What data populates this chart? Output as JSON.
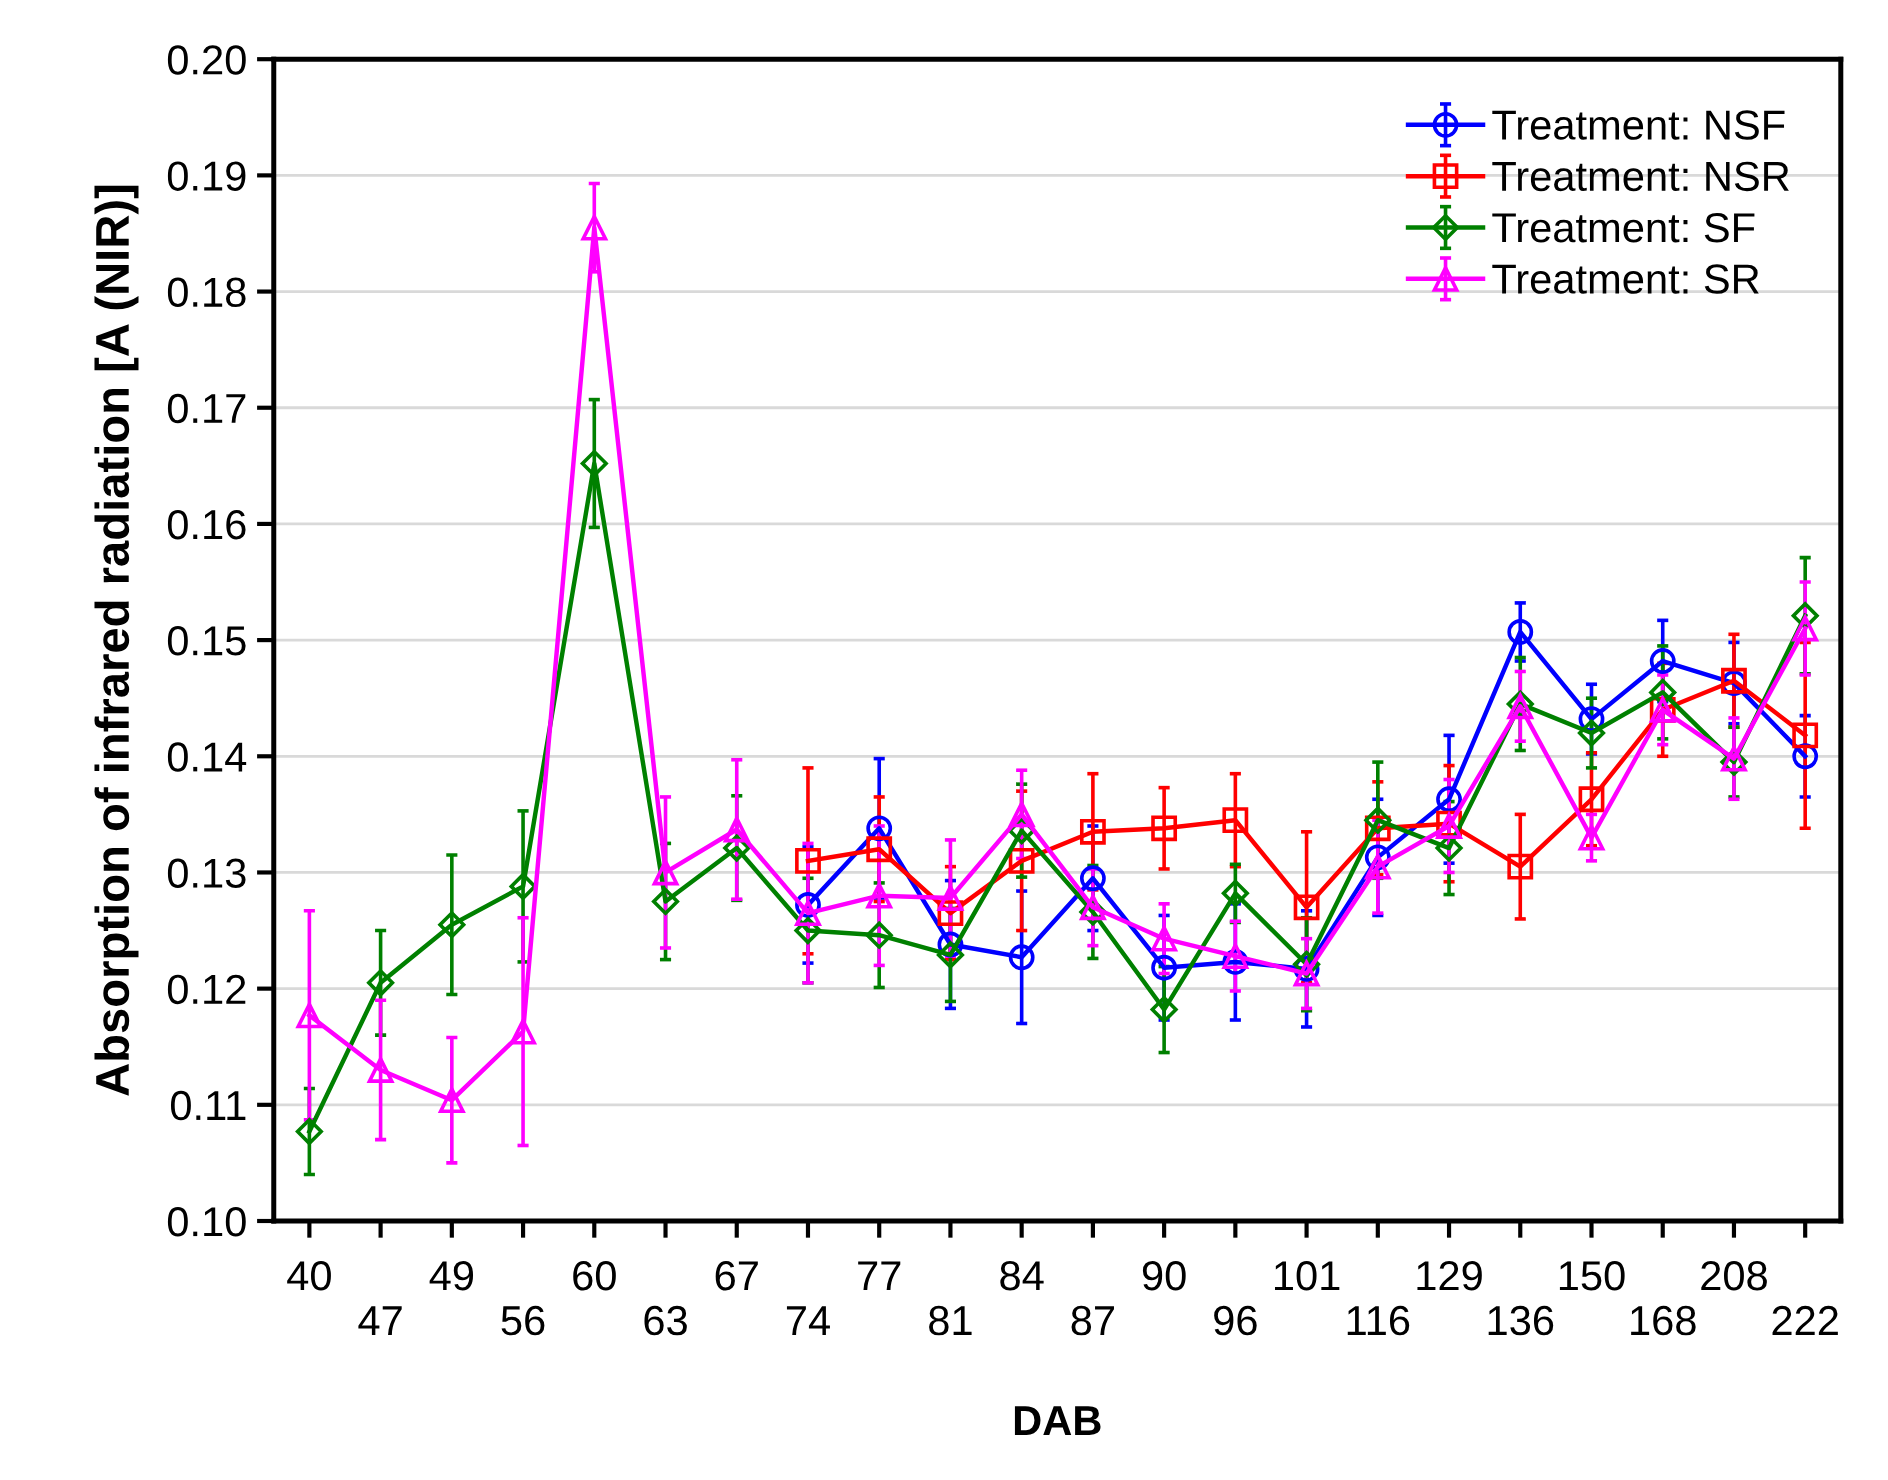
{
  "chart_data": {
    "type": "line",
    "xlabel": "DAB",
    "ylabel": "Absorption of infrared radiation [A (NIR)]",
    "categories": [
      "40",
      "47",
      "49",
      "56",
      "60",
      "63",
      "67",
      "74",
      "77",
      "81",
      "84",
      "87",
      "90",
      "96",
      "101",
      "116",
      "129",
      "136",
      "150",
      "168",
      "208",
      "222"
    ],
    "ylim": [
      0.1,
      0.2
    ],
    "yticks": [
      {
        "value": 0.1,
        "label": "0.10"
      },
      {
        "value": 0.11,
        "label": "0.11"
      },
      {
        "value": 0.12,
        "label": "0.12"
      },
      {
        "value": 0.13,
        "label": "0.13"
      },
      {
        "value": 0.14,
        "label": "0.14"
      },
      {
        "value": 0.15,
        "label": "0.15"
      },
      {
        "value": 0.16,
        "label": "0.16"
      },
      {
        "value": 0.17,
        "label": "0.17"
      },
      {
        "value": 0.18,
        "label": "0.18"
      },
      {
        "value": 0.19,
        "label": "0.19"
      },
      {
        "value": 0.2,
        "label": "0.20"
      }
    ],
    "grid": "y",
    "legend": "top right",
    "line_style": "solid",
    "series": [
      {
        "name": "Treatment: NSF",
        "color": "#0000ff",
        "marker": "circle",
        "values": [
          null,
          null,
          null,
          null,
          null,
          null,
          null,
          0.1272,
          0.1338,
          0.1238,
          0.1227,
          0.1295,
          0.1218,
          0.1223,
          0.1217,
          0.1313,
          0.1363,
          0.1507,
          0.1432,
          0.1482,
          0.1463,
          0.14
        ],
        "errors": [
          null,
          null,
          null,
          null,
          null,
          null,
          null,
          0.005,
          0.006,
          0.0055,
          0.0057,
          0.0045,
          0.0045,
          0.005,
          0.005,
          0.005,
          0.0055,
          0.0025,
          0.003,
          0.0035,
          0.0035,
          0.0035
        ]
      },
      {
        "name": "Treatment: NSR",
        "color": "#ff0000",
        "marker": "square",
        "values": [
          null,
          null,
          null,
          null,
          null,
          null,
          null,
          0.131,
          0.132,
          0.1265,
          0.131,
          0.1335,
          0.1338,
          0.1345,
          0.127,
          0.1338,
          0.1342,
          0.1305,
          0.1363,
          0.144,
          0.1465,
          0.1418
        ],
        "errors": [
          null,
          null,
          null,
          null,
          null,
          null,
          null,
          0.008,
          0.0045,
          0.004,
          0.006,
          0.005,
          0.0035,
          0.004,
          0.0065,
          0.004,
          0.005,
          0.0045,
          0.004,
          0.004,
          0.004,
          0.008
        ]
      },
      {
        "name": "Treatment: SF",
        "color": "#008000",
        "marker": "diamond",
        "values": [
          0.1077,
          0.1205,
          0.1255,
          0.1288,
          0.1652,
          0.1275,
          0.1321,
          0.125,
          0.1246,
          0.1229,
          0.1336,
          0.1266,
          0.1182,
          0.1282,
          0.1221,
          0.1345,
          0.1321,
          0.1445,
          0.142,
          0.1455,
          0.1395,
          0.1521
        ],
        "errors": [
          0.0037,
          0.0045,
          0.006,
          0.0065,
          0.0055,
          0.005,
          0.0045,
          0.0045,
          0.0045,
          0.004,
          0.004,
          0.004,
          0.0037,
          0.0025,
          0.004,
          0.005,
          0.004,
          0.004,
          0.003,
          0.004,
          0.003,
          0.005
        ]
      },
      {
        "name": "Treatment: SR",
        "color": "#ff00ff",
        "marker": "triangle",
        "values": [
          0.1177,
          0.113,
          0.1104,
          0.1163,
          0.1855,
          0.13,
          0.1337,
          0.1265,
          0.128,
          0.1278,
          0.135,
          0.127,
          0.1243,
          0.1228,
          0.1213,
          0.1305,
          0.134,
          0.1443,
          0.133,
          0.144,
          0.1398,
          0.151
        ],
        "errors": [
          0.009,
          0.006,
          0.0054,
          0.0098,
          0.0038,
          0.0065,
          0.006,
          0.006,
          0.006,
          0.005,
          0.0038,
          0.0033,
          0.003,
          0.003,
          0.003,
          0.004,
          0.004,
          0.003,
          0.002,
          0.003,
          0.0035,
          0.004
        ]
      }
    ]
  }
}
